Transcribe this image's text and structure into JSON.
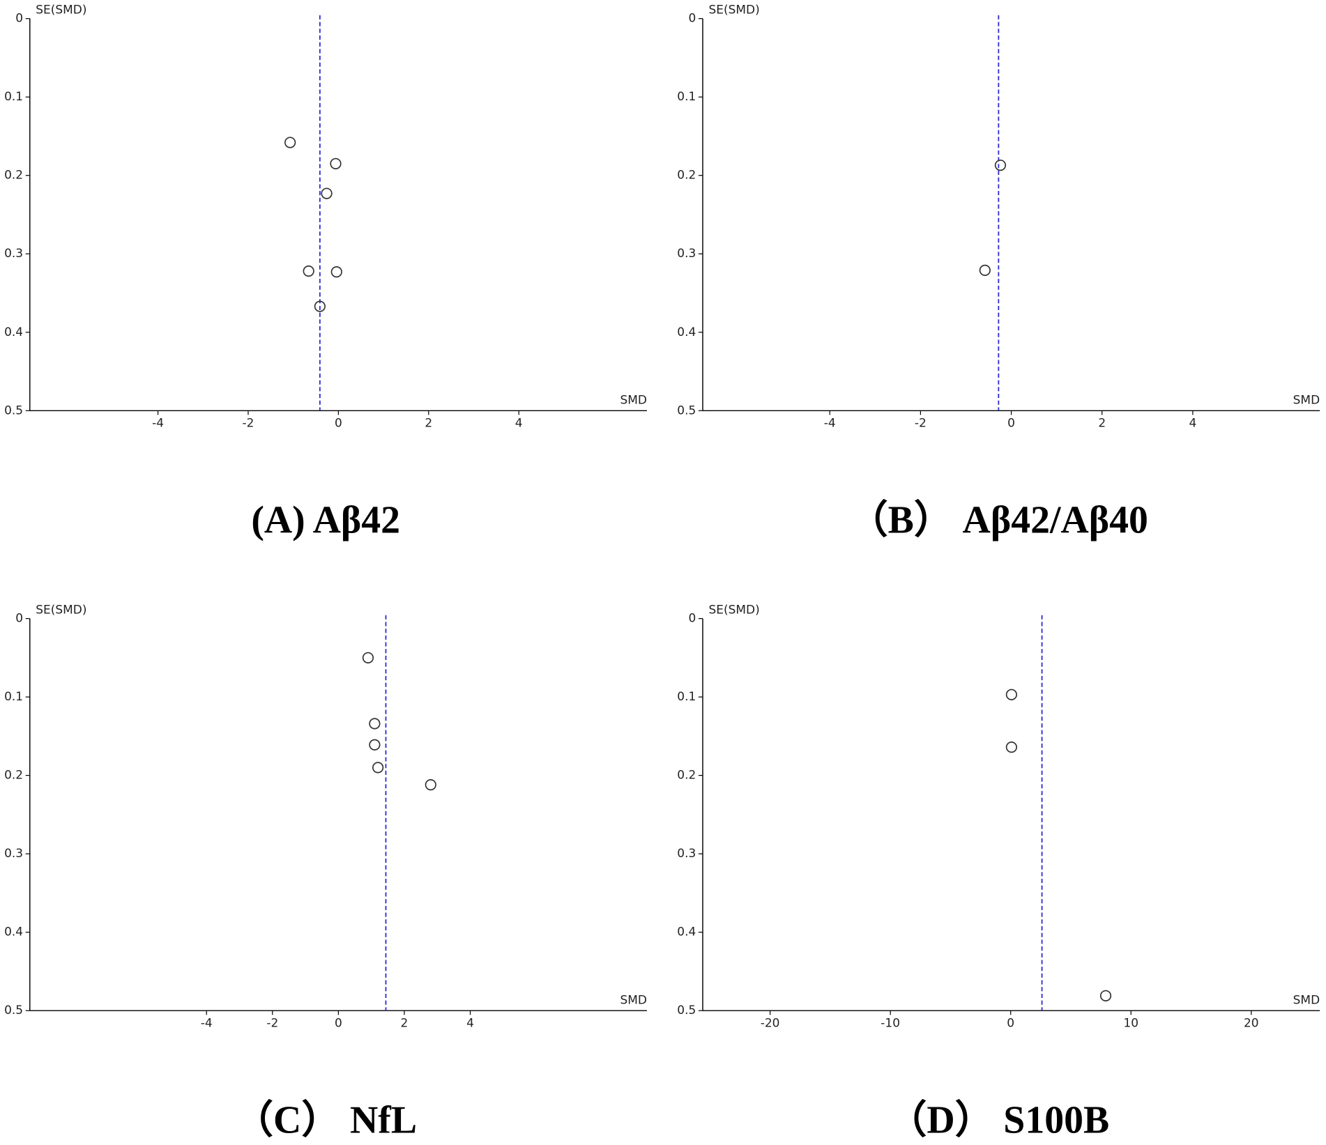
{
  "chart_data": [
    {
      "type": "scatter",
      "title": "(A) Aβ42",
      "x_label": "SMD",
      "y_label": "SE(SMD)",
      "x": [
        -1.07,
        -0.06,
        -0.26,
        -0.66,
        -0.04,
        -0.41
      ],
      "y": [
        0.158,
        0.185,
        0.223,
        0.322,
        0.323,
        0.367
      ],
      "xlim": [
        -6.84,
        6.84
      ],
      "ylim": [
        0,
        0.5
      ],
      "y_inverted": true,
      "xticks": [
        -4,
        -2,
        0,
        2,
        4
      ],
      "yticks": [
        0,
        0.1,
        0.2,
        0.3,
        0.4,
        0.5
      ],
      "ref_line_x": -0.41,
      "ref_line_color": "#2b2bd0",
      "color": "#333333"
    },
    {
      "type": "scatter",
      "title": "（B） Aβ42/Aβ40",
      "x_label": "SMD",
      "y_label": "SE(SMD)",
      "x": [
        -0.24,
        -0.58
      ],
      "y": [
        0.187,
        0.321
      ],
      "xlim": [
        -6.8,
        6.8
      ],
      "ylim": [
        0,
        0.5
      ],
      "y_inverted": true,
      "xticks": [
        -4,
        -2,
        0,
        2,
        4
      ],
      "yticks": [
        0,
        0.1,
        0.2,
        0.3,
        0.4,
        0.5
      ],
      "ref_line_x": -0.28,
      "ref_line_color": "#2b2bd0",
      "color": "#333333"
    },
    {
      "type": "scatter",
      "title": "（C） NfL",
      "x_label": "SMD",
      "y_label": "SE(SMD)",
      "x": [
        0.9,
        1.1,
        1.1,
        1.2,
        2.8
      ],
      "y": [
        0.05,
        0.134,
        0.161,
        0.19,
        0.212
      ],
      "xlim": [
        -9.36,
        9.36
      ],
      "ylim": [
        0,
        0.5
      ],
      "y_inverted": true,
      "xticks": [
        -4,
        -2,
        0,
        2,
        4
      ],
      "yticks": [
        0,
        0.1,
        0.2,
        0.3,
        0.4,
        0.5
      ],
      "ref_line_x": 1.44,
      "ref_line_color": "#2b2bd0",
      "color": "#333333"
    },
    {
      "type": "scatter",
      "title": "（D） S100B",
      "x_label": "SMD",
      "y_label": "SE(SMD)",
      "x": [
        0.07,
        0.07,
        7.9
      ],
      "y": [
        0.097,
        0.164,
        0.481
      ],
      "xlim": [
        -25.6,
        25.7
      ],
      "ylim": [
        0,
        0.5
      ],
      "y_inverted": true,
      "xticks": [
        -20,
        -10,
        0,
        10,
        20
      ],
      "yticks": [
        0,
        0.1,
        0.2,
        0.3,
        0.4,
        0.5
      ],
      "ref_line_x": 2.6,
      "ref_line_color": "#2b2bd0",
      "color": "#333333"
    }
  ]
}
